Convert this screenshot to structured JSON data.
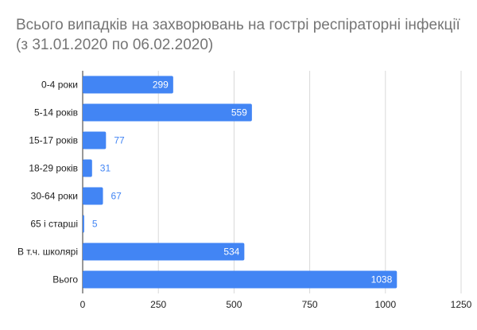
{
  "chart_data": {
    "type": "bar",
    "orientation": "horizontal",
    "title": "Всього випадків на захворювань на гострі респіраторні інфекції (з 31.01.2020 по 06.02.2020)",
    "categories": [
      "0-4 роки",
      "5-14 років",
      "15-17 років",
      "18-29 років",
      "30-64 роки",
      "65 і старші",
      "В т.ч. школярі",
      "Вього"
    ],
    "values": [
      299,
      559,
      77,
      31,
      67,
      5,
      534,
      1038
    ],
    "xlim": [
      0,
      1250
    ],
    "xticks": [
      "0",
      "250",
      "500",
      "750",
      "1000",
      "1250"
    ],
    "grid": "vertical",
    "legend": "none",
    "bar_color": "#4285f4"
  }
}
